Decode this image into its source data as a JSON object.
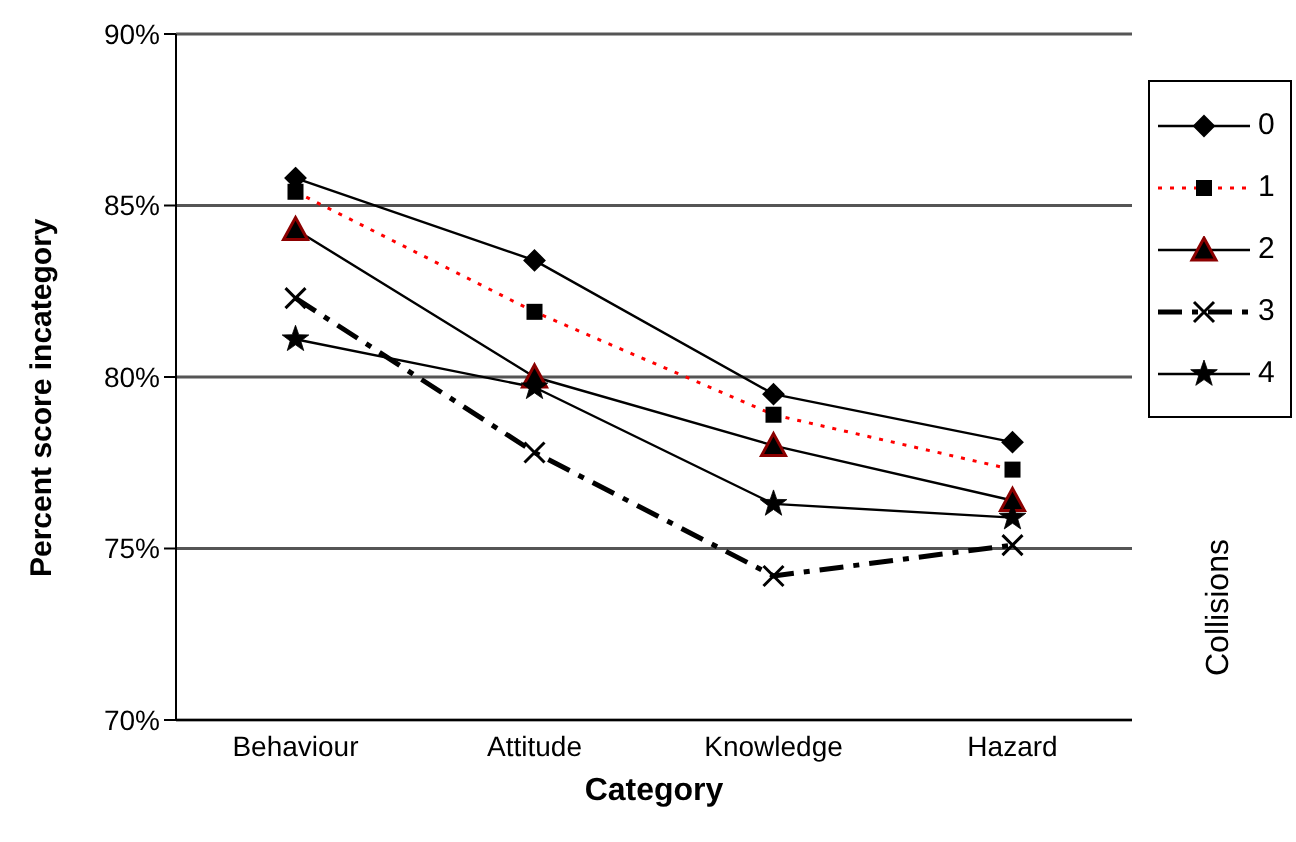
{
  "chart_data": {
    "type": "line",
    "xlabel": "Category",
    "ylabel": "Percent score incategory",
    "legend_title": "Collisions",
    "categories": [
      "Behaviour",
      "Attitude",
      "Knowledge",
      "Hazard"
    ],
    "series": [
      {
        "name": "0",
        "color": "#000000",
        "marker": "diamond",
        "line_style": "solid",
        "values": [
          85.8,
          83.4,
          79.5,
          78.1
        ]
      },
      {
        "name": "1",
        "color": "#ff0000",
        "marker": "square",
        "line_style": "dotted",
        "values": [
          85.4,
          81.9,
          78.9,
          77.3
        ]
      },
      {
        "name": "2",
        "color": "#000000",
        "marker": "triangle",
        "line_style": "solid",
        "values": [
          84.3,
          80.0,
          78.0,
          76.4
        ]
      },
      {
        "name": "3",
        "color": "#000000",
        "marker": "cross",
        "line_style": "dashed",
        "values": [
          82.3,
          77.8,
          74.2,
          75.1
        ]
      },
      {
        "name": "4",
        "color": "#000000",
        "marker": "star",
        "line_style": "solid",
        "values": [
          81.1,
          79.7,
          76.3,
          75.9
        ]
      }
    ],
    "ylim": [
      70,
      90
    ],
    "yticks": [
      {
        "value": 70,
        "label": "70%"
      },
      {
        "value": 75,
        "label": "75%"
      },
      {
        "value": 80,
        "label": "80%"
      },
      {
        "value": 85,
        "label": "85%"
      },
      {
        "value": 90,
        "label": "90%"
      }
    ],
    "grid": "y",
    "legend": "right"
  }
}
